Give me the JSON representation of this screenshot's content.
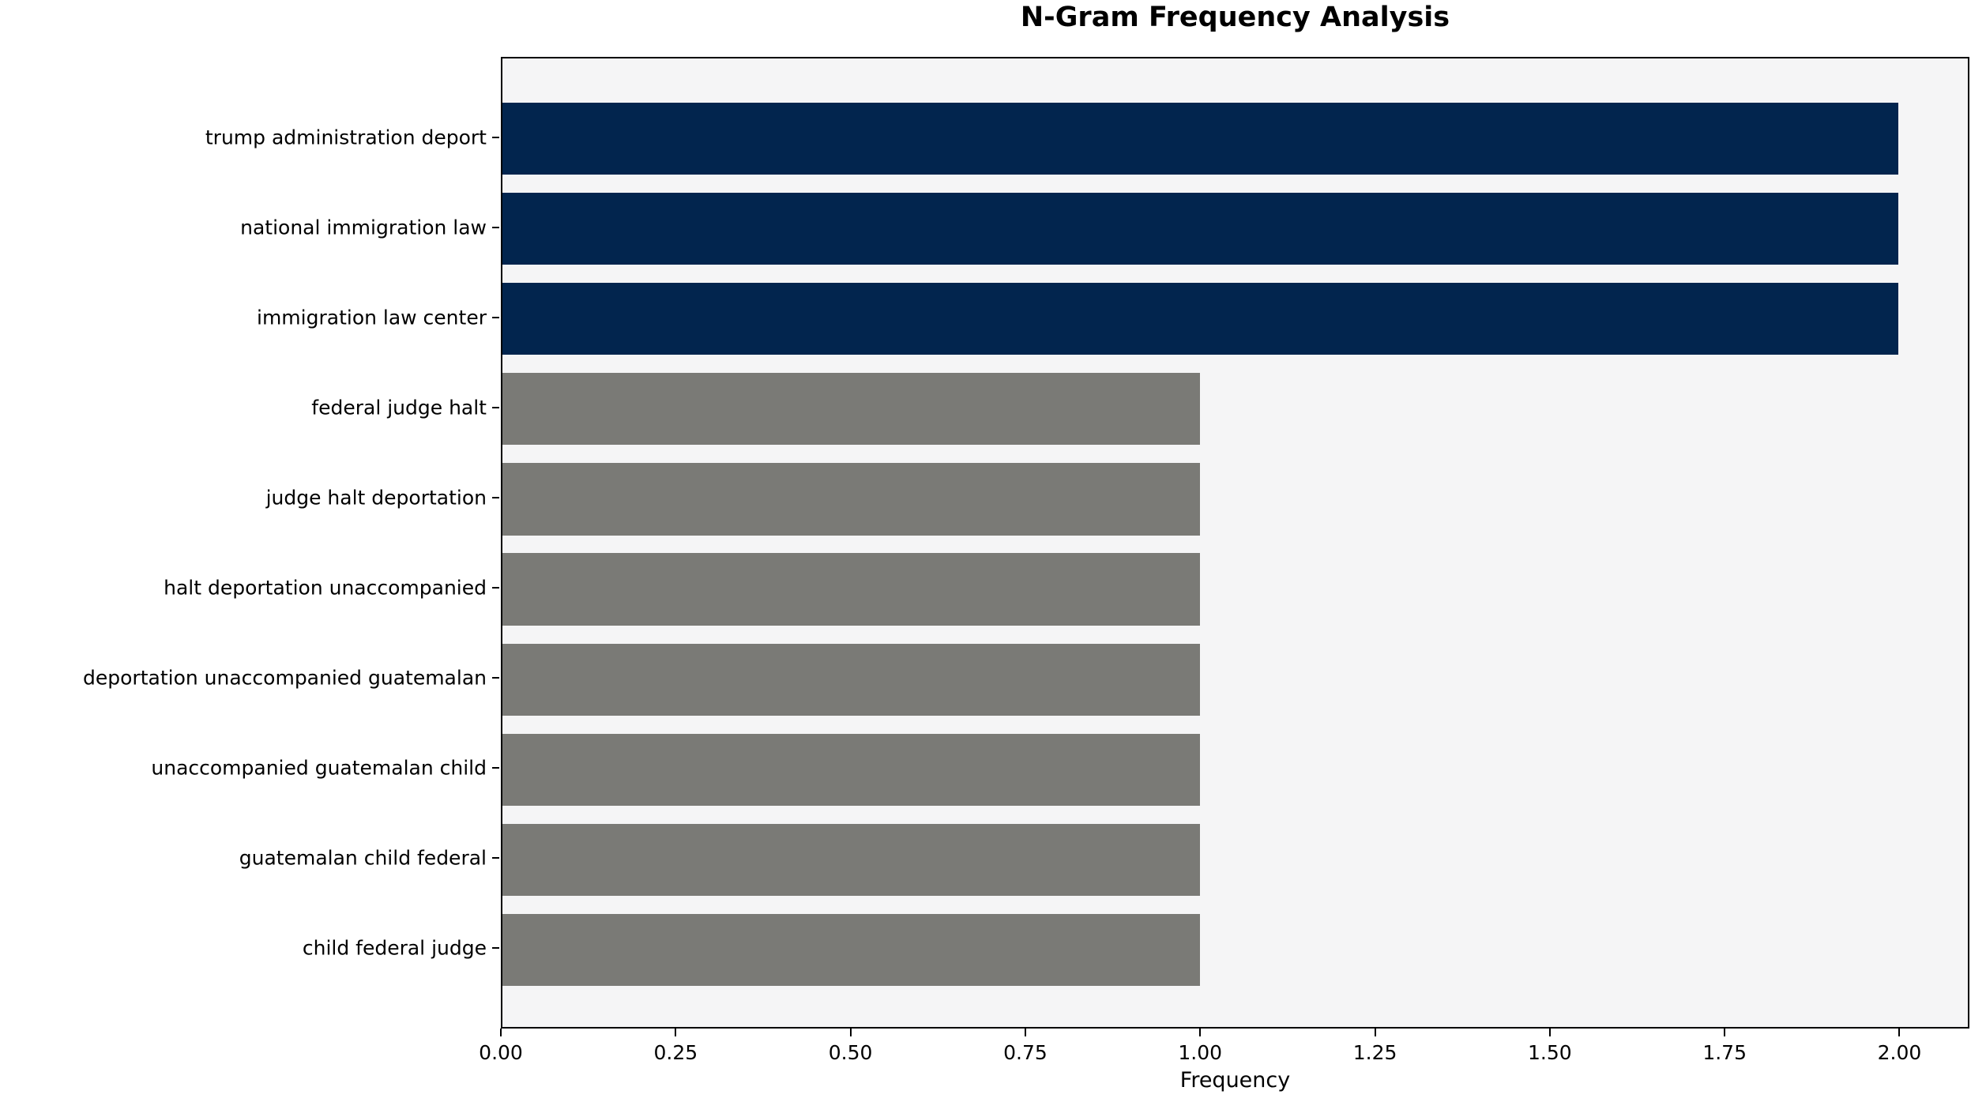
{
  "chart_data": {
    "type": "bar",
    "orientation": "horizontal",
    "title": "N-Gram Frequency Analysis",
    "xlabel": "Frequency",
    "ylabel": "",
    "categories": [
      "trump administration deport",
      "national immigration law",
      "immigration law center",
      "federal judge halt",
      "judge halt deportation",
      "halt deportation unaccompanied",
      "deportation unaccompanied guatemalan",
      "unaccompanied guatemalan child",
      "guatemalan child federal",
      "child federal judge"
    ],
    "values": [
      2,
      2,
      2,
      1,
      1,
      1,
      1,
      1,
      1,
      1
    ],
    "bar_colors": [
      "#02254E",
      "#02254E",
      "#02254E",
      "#7A7A76",
      "#7A7A76",
      "#7A7A76",
      "#7A7A76",
      "#7A7A76",
      "#7A7A76",
      "#7A7A76"
    ],
    "xlim": [
      0,
      2.1
    ],
    "xticks": [
      "0.00",
      "0.25",
      "0.50",
      "0.75",
      "1.00",
      "1.25",
      "1.50",
      "1.75",
      "2.00"
    ],
    "bar_height": 0.8,
    "y_outer_pad": 0.89,
    "grid": false,
    "legend": null,
    "colors": {
      "plot_bg": "#F5F5F6",
      "figure_bg": "#FFFFFF",
      "spine": "#000000",
      "navy_accent": "#02254E",
      "gray_accent": "#7A7A76"
    }
  }
}
